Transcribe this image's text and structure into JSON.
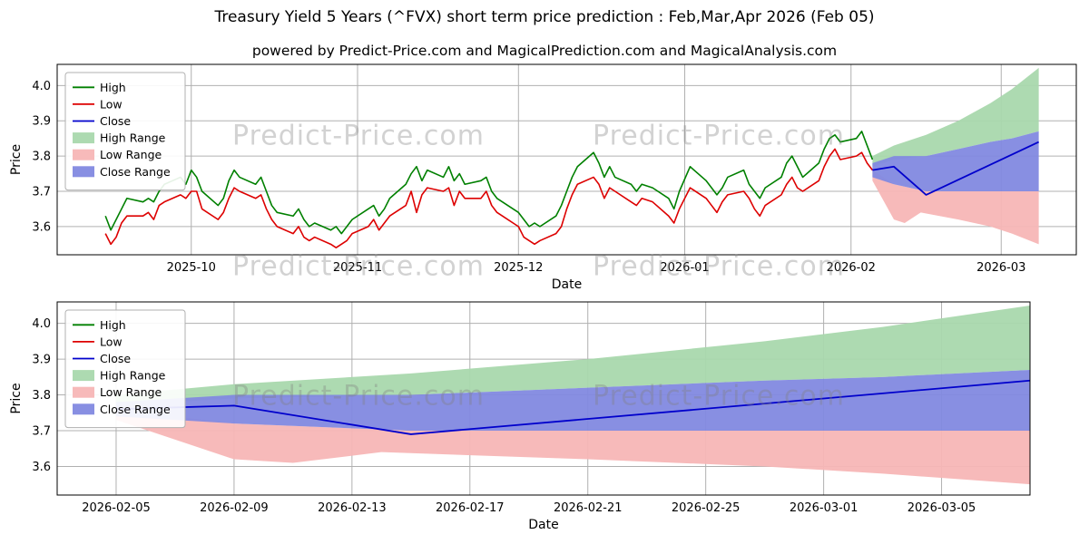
{
  "page": {
    "title": "Treasury Yield 5 Years (^FVX) short term price prediction : Feb,Mar,Apr 2026 (Feb 05)",
    "subtitle": "powered by Predict-Price.com and MagicalPrediction.com and MagicalAnalysis.com",
    "watermark": "Predict-Price.com"
  },
  "colors": {
    "high": "#008000",
    "low": "#dd0000",
    "close": "#0000cc",
    "high_range": "#a9d8ad",
    "low_range": "#f7b6b6",
    "close_range": "#8289e0",
    "grid": "#b0b0b0",
    "axis": "#000000"
  },
  "chart_data": [
    {
      "id": "history-with-forecast",
      "type": "line",
      "xlabel": "Date",
      "ylabel": "Price",
      "ylim": [
        3.52,
        4.06
      ],
      "xlim": [
        "2025-09-06",
        "2026-03-15"
      ],
      "yticks": [
        3.6,
        3.7,
        3.8,
        3.9,
        4.0
      ],
      "xticks": [
        {
          "value": "2025-10-01",
          "label": "2025-10"
        },
        {
          "value": "2025-11-01",
          "label": "2025-11"
        },
        {
          "value": "2025-12-01",
          "label": "2025-12"
        },
        {
          "value": "2026-01-01",
          "label": "2026-01"
        },
        {
          "value": "2026-02-01",
          "label": "2026-02"
        },
        {
          "value": "2026-03-01",
          "label": "2026-03"
        }
      ],
      "legend": [
        "High",
        "Low",
        "Close",
        "High Range",
        "Low Range",
        "Close Range"
      ],
      "history": [
        [
          "2025-09-15",
          3.63,
          3.58
        ],
        [
          "2025-09-16",
          3.59,
          3.55
        ],
        [
          "2025-09-17",
          3.62,
          3.57
        ],
        [
          "2025-09-18",
          3.65,
          3.61
        ],
        [
          "2025-09-19",
          3.68,
          3.63
        ],
        [
          "2025-09-22",
          3.67,
          3.63
        ],
        [
          "2025-09-23",
          3.68,
          3.64
        ],
        [
          "2025-09-24",
          3.67,
          3.62
        ],
        [
          "2025-09-25",
          3.7,
          3.66
        ],
        [
          "2025-09-26",
          3.72,
          3.67
        ],
        [
          "2025-09-29",
          3.74,
          3.69
        ],
        [
          "2025-09-30",
          3.72,
          3.68
        ],
        [
          "2025-10-01",
          3.76,
          3.7
        ],
        [
          "2025-10-02",
          3.74,
          3.7
        ],
        [
          "2025-10-03",
          3.7,
          3.65
        ],
        [
          "2025-10-06",
          3.66,
          3.62
        ],
        [
          "2025-10-07",
          3.68,
          3.64
        ],
        [
          "2025-10-08",
          3.73,
          3.68
        ],
        [
          "2025-10-09",
          3.76,
          3.71
        ],
        [
          "2025-10-10",
          3.74,
          3.7
        ],
        [
          "2025-10-13",
          3.72,
          3.68
        ],
        [
          "2025-10-14",
          3.74,
          3.69
        ],
        [
          "2025-10-15",
          3.7,
          3.65
        ],
        [
          "2025-10-16",
          3.66,
          3.62
        ],
        [
          "2025-10-17",
          3.64,
          3.6
        ],
        [
          "2025-10-20",
          3.63,
          3.58
        ],
        [
          "2025-10-21",
          3.65,
          3.6
        ],
        [
          "2025-10-22",
          3.62,
          3.57
        ],
        [
          "2025-10-23",
          3.6,
          3.56
        ],
        [
          "2025-10-24",
          3.61,
          3.57
        ],
        [
          "2025-10-27",
          3.59,
          3.55
        ],
        [
          "2025-10-28",
          3.6,
          3.54
        ],
        [
          "2025-10-29",
          3.58,
          3.55
        ],
        [
          "2025-10-30",
          3.6,
          3.56
        ],
        [
          "2025-10-31",
          3.62,
          3.58
        ],
        [
          "2025-11-03",
          3.65,
          3.6
        ],
        [
          "2025-11-04",
          3.66,
          3.62
        ],
        [
          "2025-11-05",
          3.63,
          3.59
        ],
        [
          "2025-11-06",
          3.65,
          3.61
        ],
        [
          "2025-11-07",
          3.68,
          3.63
        ],
        [
          "2025-11-10",
          3.72,
          3.66
        ],
        [
          "2025-11-11",
          3.75,
          3.7
        ],
        [
          "2025-11-12",
          3.77,
          3.64
        ],
        [
          "2025-11-13",
          3.73,
          3.69
        ],
        [
          "2025-11-14",
          3.76,
          3.71
        ],
        [
          "2025-11-17",
          3.74,
          3.7
        ],
        [
          "2025-11-18",
          3.77,
          3.71
        ],
        [
          "2025-11-19",
          3.73,
          3.66
        ],
        [
          "2025-11-20",
          3.75,
          3.7
        ],
        [
          "2025-11-21",
          3.72,
          3.68
        ],
        [
          "2025-11-24",
          3.73,
          3.68
        ],
        [
          "2025-11-25",
          3.74,
          3.7
        ],
        [
          "2025-11-26",
          3.7,
          3.66
        ],
        [
          "2025-11-27",
          3.68,
          3.64
        ],
        [
          "2025-11-28",
          3.67,
          3.63
        ],
        [
          "2025-12-01",
          3.64,
          3.6
        ],
        [
          "2025-12-02",
          3.62,
          3.57
        ],
        [
          "2025-12-03",
          3.6,
          3.56
        ],
        [
          "2025-12-04",
          3.61,
          3.55
        ],
        [
          "2025-12-05",
          3.6,
          3.56
        ],
        [
          "2025-12-08",
          3.63,
          3.58
        ],
        [
          "2025-12-09",
          3.66,
          3.6
        ],
        [
          "2025-12-10",
          3.7,
          3.65
        ],
        [
          "2025-12-11",
          3.74,
          3.69
        ],
        [
          "2025-12-12",
          3.77,
          3.72
        ],
        [
          "2025-12-15",
          3.81,
          3.74
        ],
        [
          "2025-12-16",
          3.78,
          3.72
        ],
        [
          "2025-12-17",
          3.74,
          3.68
        ],
        [
          "2025-12-18",
          3.77,
          3.71
        ],
        [
          "2025-12-19",
          3.74,
          3.7
        ],
        [
          "2025-12-22",
          3.72,
          3.67
        ],
        [
          "2025-12-23",
          3.7,
          3.66
        ],
        [
          "2025-12-24",
          3.72,
          3.68
        ],
        [
          "2025-12-26",
          3.71,
          3.67
        ],
        [
          "2025-12-29",
          3.68,
          3.63
        ],
        [
          "2025-12-30",
          3.65,
          3.61
        ],
        [
          "2025-12-31",
          3.7,
          3.65
        ],
        [
          "2026-01-02",
          3.77,
          3.71
        ],
        [
          "2026-01-05",
          3.73,
          3.68
        ],
        [
          "2026-01-06",
          3.71,
          3.66
        ],
        [
          "2026-01-07",
          3.69,
          3.64
        ],
        [
          "2026-01-08",
          3.71,
          3.67
        ],
        [
          "2026-01-09",
          3.74,
          3.69
        ],
        [
          "2026-01-12",
          3.76,
          3.7
        ],
        [
          "2026-01-13",
          3.72,
          3.68
        ],
        [
          "2026-01-14",
          3.7,
          3.65
        ],
        [
          "2026-01-15",
          3.68,
          3.63
        ],
        [
          "2026-01-16",
          3.71,
          3.66
        ],
        [
          "2026-01-19",
          3.74,
          3.69
        ],
        [
          "2026-01-20",
          3.78,
          3.72
        ],
        [
          "2026-01-21",
          3.8,
          3.74
        ],
        [
          "2026-01-22",
          3.77,
          3.71
        ],
        [
          "2026-01-23",
          3.74,
          3.7
        ],
        [
          "2026-01-26",
          3.78,
          3.73
        ],
        [
          "2026-01-27",
          3.82,
          3.77
        ],
        [
          "2026-01-28",
          3.85,
          3.8
        ],
        [
          "2026-01-29",
          3.86,
          3.82
        ],
        [
          "2026-01-30",
          3.84,
          3.79
        ],
        [
          "2026-02-02",
          3.85,
          3.8
        ],
        [
          "2026-02-03",
          3.87,
          3.81
        ],
        [
          "2026-02-04",
          3.83,
          3.78
        ],
        [
          "2026-02-05",
          3.79,
          3.76
        ]
      ],
      "forecast": {
        "close": [
          [
            "2026-02-05",
            3.76
          ],
          [
            "2026-02-09",
            3.77
          ],
          [
            "2026-02-15",
            3.69
          ],
          [
            "2026-03-08",
            3.84
          ]
        ],
        "high_range": {
          "upper": [
            [
              "2026-02-05",
              3.8
            ],
            [
              "2026-02-09",
              3.83
            ],
            [
              "2026-02-15",
              3.86
            ],
            [
              "2026-02-21",
              3.9
            ],
            [
              "2026-02-27",
              3.95
            ],
            [
              "2026-03-03",
              3.99
            ],
            [
              "2026-03-08",
              4.05
            ]
          ],
          "lower": [
            [
              "2026-02-05",
              3.77
            ],
            [
              "2026-02-09",
              3.79
            ],
            [
              "2026-02-15",
              3.8
            ],
            [
              "2026-02-21",
              3.82
            ],
            [
              "2026-02-27",
              3.84
            ],
            [
              "2026-03-03",
              3.85
            ],
            [
              "2026-03-08",
              3.87
            ]
          ]
        },
        "low_range": {
          "upper": [
            [
              "2026-02-05",
              3.76
            ],
            [
              "2026-02-09",
              3.72
            ],
            [
              "2026-02-15",
              3.7
            ],
            [
              "2026-02-21",
              3.7
            ],
            [
              "2026-02-27",
              3.7
            ],
            [
              "2026-03-03",
              3.7
            ],
            [
              "2026-03-08",
              3.7
            ]
          ],
          "lower": [
            [
              "2026-02-05",
              3.73
            ],
            [
              "2026-02-09",
              3.62
            ],
            [
              "2026-02-11",
              3.61
            ],
            [
              "2026-02-14",
              3.64
            ],
            [
              "2026-02-21",
              3.62
            ],
            [
              "2026-02-27",
              3.6
            ],
            [
              "2026-03-03",
              3.58
            ],
            [
              "2026-03-08",
              3.55
            ]
          ]
        },
        "close_range": {
          "upper": [
            [
              "2026-02-05",
              3.78
            ],
            [
              "2026-02-09",
              3.8
            ],
            [
              "2026-02-15",
              3.8
            ],
            [
              "2026-02-21",
              3.82
            ],
            [
              "2026-02-27",
              3.84
            ],
            [
              "2026-03-03",
              3.85
            ],
            [
              "2026-03-08",
              3.87
            ]
          ],
          "lower": [
            [
              "2026-02-05",
              3.74
            ],
            [
              "2026-02-09",
              3.72
            ],
            [
              "2026-02-15",
              3.7
            ],
            [
              "2026-02-21",
              3.7
            ],
            [
              "2026-02-27",
              3.7
            ],
            [
              "2026-03-03",
              3.7
            ],
            [
              "2026-03-08",
              3.7
            ]
          ]
        }
      }
    },
    {
      "id": "forecast-detail",
      "type": "line",
      "xlabel": "Date",
      "ylabel": "Price",
      "ylim": [
        3.52,
        4.06
      ],
      "xlim": [
        "2026-02-03",
        "2026-03-08"
      ],
      "yticks": [
        3.6,
        3.7,
        3.8,
        3.9,
        4.0
      ],
      "xticks": [
        {
          "value": "2026-02-05",
          "label": "2026-02-05"
        },
        {
          "value": "2026-02-09",
          "label": "2026-02-09"
        },
        {
          "value": "2026-02-13",
          "label": "2026-02-13"
        },
        {
          "value": "2026-02-17",
          "label": "2026-02-17"
        },
        {
          "value": "2026-02-21",
          "label": "2026-02-21"
        },
        {
          "value": "2026-02-25",
          "label": "2026-02-25"
        },
        {
          "value": "2026-03-01",
          "label": "2026-03-01"
        },
        {
          "value": "2026-03-05",
          "label": "2026-03-05"
        }
      ],
      "legend": [
        "High",
        "Low",
        "Close",
        "High Range",
        "Low Range",
        "Close Range"
      ],
      "forecast": {
        "close": [
          [
            "2026-02-05",
            3.76
          ],
          [
            "2026-02-09",
            3.77
          ],
          [
            "2026-02-15",
            3.69
          ],
          [
            "2026-03-08",
            3.84
          ]
        ],
        "high_range": {
          "upper": [
            [
              "2026-02-05",
              3.8
            ],
            [
              "2026-02-09",
              3.83
            ],
            [
              "2026-02-15",
              3.86
            ],
            [
              "2026-02-21",
              3.9
            ],
            [
              "2026-02-27",
              3.95
            ],
            [
              "2026-03-03",
              3.99
            ],
            [
              "2026-03-08",
              4.05
            ]
          ],
          "lower": [
            [
              "2026-02-05",
              3.77
            ],
            [
              "2026-02-09",
              3.79
            ],
            [
              "2026-02-15",
              3.8
            ],
            [
              "2026-02-21",
              3.82
            ],
            [
              "2026-02-27",
              3.84
            ],
            [
              "2026-03-03",
              3.85
            ],
            [
              "2026-03-08",
              3.87
            ]
          ]
        },
        "low_range": {
          "upper": [
            [
              "2026-02-05",
              3.76
            ],
            [
              "2026-02-09",
              3.72
            ],
            [
              "2026-02-15",
              3.7
            ],
            [
              "2026-02-21",
              3.7
            ],
            [
              "2026-02-27",
              3.7
            ],
            [
              "2026-03-03",
              3.7
            ],
            [
              "2026-03-08",
              3.7
            ]
          ],
          "lower": [
            [
              "2026-02-05",
              3.73
            ],
            [
              "2026-02-09",
              3.62
            ],
            [
              "2026-02-11",
              3.61
            ],
            [
              "2026-02-14",
              3.64
            ],
            [
              "2026-02-21",
              3.62
            ],
            [
              "2026-02-27",
              3.6
            ],
            [
              "2026-03-03",
              3.58
            ],
            [
              "2026-03-08",
              3.55
            ]
          ]
        },
        "close_range": {
          "upper": [
            [
              "2026-02-05",
              3.78
            ],
            [
              "2026-02-09",
              3.8
            ],
            [
              "2026-02-15",
              3.8
            ],
            [
              "2026-02-21",
              3.82
            ],
            [
              "2026-02-27",
              3.84
            ],
            [
              "2026-03-03",
              3.85
            ],
            [
              "2026-03-08",
              3.87
            ]
          ],
          "lower": [
            [
              "2026-02-05",
              3.74
            ],
            [
              "2026-02-09",
              3.72
            ],
            [
              "2026-02-15",
              3.7
            ],
            [
              "2026-02-21",
              3.7
            ],
            [
              "2026-02-27",
              3.7
            ],
            [
              "2026-03-03",
              3.7
            ],
            [
              "2026-03-08",
              3.7
            ]
          ]
        }
      }
    }
  ]
}
